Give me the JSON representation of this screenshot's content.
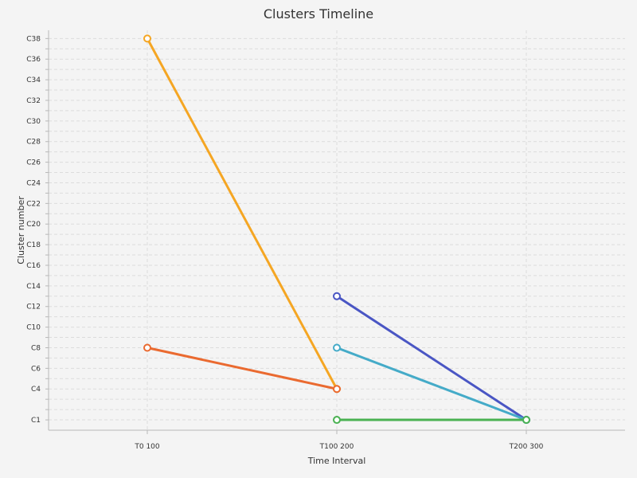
{
  "chart_data": {
    "type": "line",
    "title": "Clusters Timeline",
    "xlabel": "Time Interval",
    "ylabel": "Cluster number",
    "categories": [
      "T0 100",
      "T100 200",
      "T200 300"
    ],
    "y_tick_labels": [
      "C1",
      "C4",
      "C6",
      "C8",
      "C10",
      "C12",
      "C14",
      "C16",
      "C18",
      "C20",
      "C22",
      "C24",
      "C26",
      "C28",
      "C30",
      "C32",
      "C34",
      "C36",
      "C38"
    ],
    "y_tick_values": [
      1,
      4,
      6,
      8,
      10,
      12,
      14,
      16,
      18,
      20,
      22,
      24,
      26,
      28,
      30,
      32,
      34,
      36,
      38
    ],
    "ylim": [
      0,
      38.8
    ],
    "grid": true,
    "series": [
      {
        "color": "#f5a623",
        "points": [
          {
            "x": "T0 100",
            "y": 38
          },
          {
            "x": "T100 200",
            "y": 4
          }
        ]
      },
      {
        "color": "#ea6a30",
        "points": [
          {
            "x": "T0 100",
            "y": 8
          },
          {
            "x": "T100 200",
            "y": 4
          }
        ]
      },
      {
        "color": "#4a56c4",
        "points": [
          {
            "x": "T100 200",
            "y": 13
          },
          {
            "x": "T200 300",
            "y": 1
          }
        ]
      },
      {
        "color": "#45abc8",
        "points": [
          {
            "x": "T100 200",
            "y": 8
          },
          {
            "x": "T200 300",
            "y": 1
          }
        ]
      },
      {
        "color": "#4ab252",
        "points": [
          {
            "x": "T100 200",
            "y": 1
          },
          {
            "x": "T200 300",
            "y": 1
          }
        ]
      }
    ]
  }
}
